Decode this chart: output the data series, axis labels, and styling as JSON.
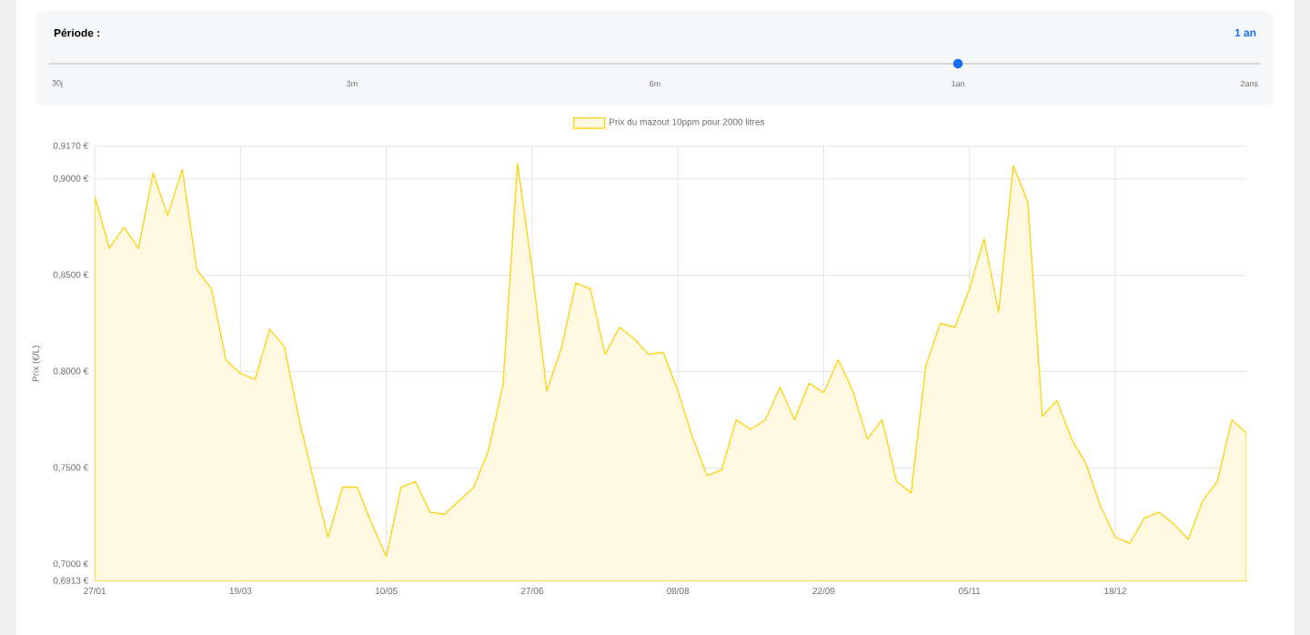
{
  "chart_data": {
    "type": "area",
    "categories": [
      "27/01",
      null,
      null,
      null,
      null,
      null,
      null,
      null,
      null,
      null,
      "19/03",
      null,
      null,
      null,
      null,
      null,
      null,
      null,
      null,
      null,
      "10/05",
      null,
      null,
      null,
      null,
      null,
      null,
      null,
      null,
      null,
      "27/06",
      null,
      null,
      null,
      null,
      null,
      null,
      null,
      null,
      null,
      "08/08",
      null,
      null,
      null,
      null,
      null,
      null,
      null,
      null,
      null,
      "22/09",
      null,
      null,
      null,
      null,
      null,
      null,
      null,
      null,
      null,
      "05/11",
      null,
      null,
      null,
      null,
      null,
      null,
      null,
      null,
      null,
      "18/12",
      null,
      null,
      null,
      null,
      null,
      null,
      null,
      null,
      null
    ],
    "series": [
      {
        "name": "Prix du mazout 10ppm pour 2000 litres",
        "color": "#ffd31a",
        "values": [
          0.891,
          0.864,
          0.875,
          0.864,
          0.903,
          0.881,
          0.905,
          0.853,
          0.843,
          0.806,
          0.799,
          0.796,
          0.822,
          0.813,
          0.776,
          0.744,
          0.714,
          0.74,
          0.74,
          0.721,
          0.704,
          0.74,
          0.743,
          0.727,
          0.726,
          0.733,
          0.74,
          0.759,
          0.793,
          0.908,
          0.853,
          0.79,
          0.812,
          0.846,
          0.843,
          0.809,
          0.823,
          0.817,
          0.809,
          0.81,
          0.79,
          0.766,
          0.746,
          0.749,
          0.775,
          0.77,
          0.775,
          0.792,
          0.775,
          0.794,
          0.789,
          0.806,
          0.79,
          0.765,
          0.775,
          0.743,
          0.737,
          0.803,
          0.825,
          0.823,
          0.843,
          0.869,
          0.831,
          0.907,
          0.888,
          0.777,
          0.785,
          0.765,
          0.752,
          0.73,
          0.714,
          0.711,
          0.724,
          0.727,
          0.721,
          0.713,
          0.733,
          0.743,
          0.775,
          0.768
        ]
      }
    ],
    "ylabel": "Prix (€/L)",
    "ylim": [
      0.6913,
      0.917
    ],
    "yticks": [
      {
        "value": 0.6913,
        "label": "0,6913 €"
      },
      {
        "value": 0.7,
        "label": "0,7000 €"
      },
      {
        "value": 0.75,
        "label": "0,7500 €"
      },
      {
        "value": 0.8,
        "label": "0,8000 €"
      },
      {
        "value": 0.85,
        "label": "0,8500 €"
      },
      {
        "value": 0.9,
        "label": "0,9000 €"
      },
      {
        "value": 0.917,
        "label": "0,9170 €"
      }
    ],
    "grid": true,
    "legend": "top",
    "marker": "none",
    "annotations": [
      "Période :",
      "1 an",
      "30j",
      "3m",
      "6m",
      "1an",
      "2ans"
    ]
  }
}
